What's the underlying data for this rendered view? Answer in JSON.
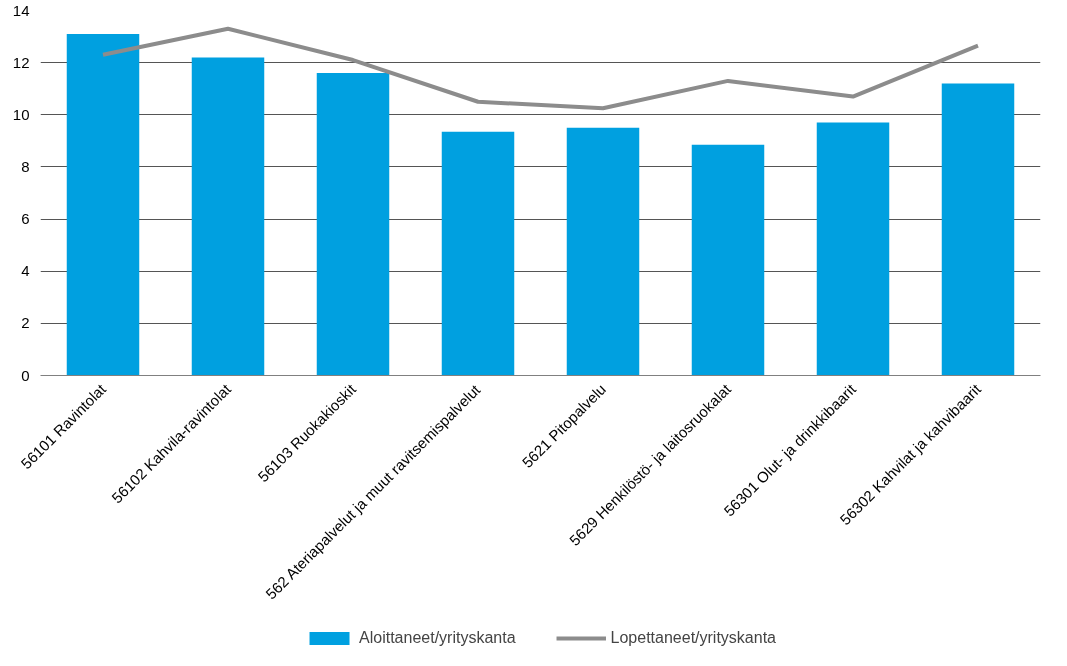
{
  "chart_data": {
    "type": "bar",
    "categories": [
      "56101 Ravintolat",
      "56102 Kahvila-ravintolat",
      "56103 Ruokakioskit",
      "562 Ateriapalvelut ja muut ravitsemispalvelut",
      "5621 Pitopalvelu",
      "5629 Henkilöstö- ja laitosruokalat",
      "56301 Olut- ja drinkkibaarit",
      "56302 Kahvilat ja kahvibaarit"
    ],
    "series": [
      {
        "name": "Aloittaneet/yrityskanta",
        "color": "#00a0e0",
        "values": [
          13.1,
          12.2,
          11.6,
          9.35,
          9.5,
          8.85,
          9.7,
          11.2
        ]
      },
      {
        "name": "Lopettaneet/yrityskanta",
        "type": "line",
        "color": "#8c8c8c",
        "values": [
          12.3,
          13.3,
          12.1,
          10.5,
          10.25,
          11.3,
          10.7,
          12.65
        ]
      }
    ],
    "ylim": [
      0,
      14
    ],
    "yticks": [
      0,
      2,
      4,
      6,
      8,
      10,
      12,
      14
    ],
    "grid": "y",
    "legend": "bottom",
    "marker": "none",
    "line_style": "solid"
  }
}
